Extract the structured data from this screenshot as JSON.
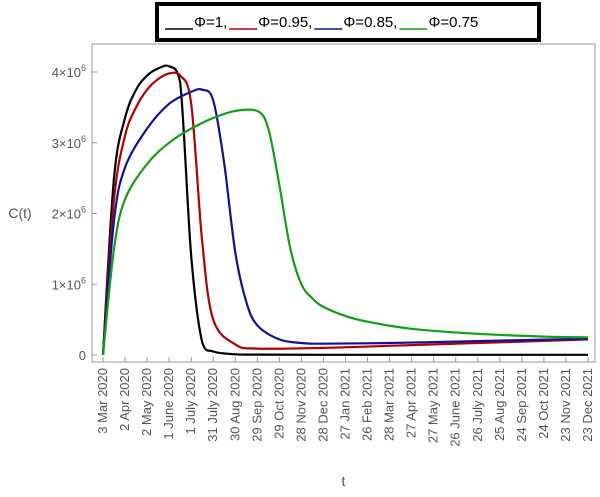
{
  "chart_data": {
    "type": "line",
    "xlabel": "t",
    "ylabel": "C(t)",
    "ylim": [
      0,
      4200000
    ],
    "grid": false,
    "legend_position": "top",
    "x_ticks": [
      "3 Mar 2020",
      "2 Apr 2020",
      "2 May 2020",
      "1 June 2020",
      "1 July 2020",
      "31 July 2020",
      "30 Aug 2020",
      "29 Sep 2020",
      "29 Oct 2020",
      "28 Nov 2020",
      "28 Dec 2020",
      "27 Jan 2021",
      "26 Feb 2021",
      "28 Mar 2021",
      "27 Apr 2021",
      "27 May 2021",
      "26 June 2021",
      "26 July 2021",
      "25 Aug 2021",
      "24 Sep 2021",
      "24 Oct 2021",
      "23 Nov 2021",
      "23 Dec 2021"
    ],
    "y_ticks": [
      {
        "value": 0,
        "base": "0",
        "exp": ""
      },
      {
        "value": 1000000,
        "base": "1×10",
        "exp": "6"
      },
      {
        "value": 2000000,
        "base": "2×10",
        "exp": "6"
      },
      {
        "value": 3000000,
        "base": "3×10",
        "exp": "6"
      },
      {
        "value": 4000000,
        "base": "4×10",
        "exp": "6"
      }
    ],
    "series": [
      {
        "name": "Φ=1",
        "color": "#000000",
        "x": [
          "3 Mar 2020",
          "18 Mar 2020",
          "2 Apr 2020",
          "17 Apr 2020",
          "2 May 2020",
          "17 May 2020",
          "1 June 2020",
          "16 June 2020",
          "1 July 2020",
          "16 July 2020",
          "31 July 2020",
          "30 Aug 2020",
          "29 Sep 2020",
          "28 Dec 2020",
          "28 Mar 2021",
          "26 June 2021",
          "23 Dec 2021"
        ],
        "values": [
          0,
          2500000,
          3350000,
          3750000,
          3950000,
          4050000,
          4080000,
          3850000,
          1400000,
          180000,
          50000,
          10000,
          5000,
          3000,
          3000,
          3000,
          3000
        ]
      },
      {
        "name": "Φ=0.95",
        "color": "#b00000",
        "x": [
          "3 Mar 2020",
          "18 Mar 2020",
          "2 Apr 2020",
          "17 Apr 2020",
          "2 May 2020",
          "17 May 2020",
          "1 June 2020",
          "16 June 2020",
          "1 July 2020",
          "16 July 2020",
          "31 July 2020",
          "30 Aug 2020",
          "29 Sep 2020",
          "28 Dec 2020",
          "28 Mar 2021",
          "26 June 2021",
          "24 Sep 2021",
          "23 Dec 2021"
        ],
        "values": [
          0,
          2200000,
          3100000,
          3500000,
          3750000,
          3900000,
          3980000,
          3950000,
          3550000,
          1600000,
          500000,
          150000,
          90000,
          100000,
          130000,
          160000,
          190000,
          220000
        ]
      },
      {
        "name": "Φ=0.85",
        "color": "#1010a0",
        "x": [
          "3 Mar 2020",
          "18 Mar 2020",
          "2 Apr 2020",
          "2 May 2020",
          "1 June 2020",
          "1 July 2020",
          "16 July 2020",
          "31 July 2020",
          "15 Aug 2020",
          "30 Aug 2020",
          "14 Sep 2020",
          "29 Sep 2020",
          "29 Oct 2020",
          "28 Nov 2020",
          "28 Dec 2020",
          "28 Mar 2021",
          "26 June 2021",
          "24 Sep 2021",
          "23 Dec 2021"
        ],
        "values": [
          0,
          1900000,
          2650000,
          3200000,
          3550000,
          3720000,
          3750000,
          3600000,
          2700000,
          1450000,
          750000,
          420000,
          220000,
          170000,
          160000,
          170000,
          190000,
          210000,
          230000
        ]
      },
      {
        "name": "Φ=0.75",
        "color": "#10a010",
        "x": [
          "3 Mar 2020",
          "18 Mar 2020",
          "2 Apr 2020",
          "2 May 2020",
          "1 June 2020",
          "1 July 2020",
          "31 July 2020",
          "30 Aug 2020",
          "29 Sep 2020",
          "14 Oct 2020",
          "29 Oct 2020",
          "13 Nov 2020",
          "28 Nov 2020",
          "13 Dec 2020",
          "28 Dec 2020",
          "27 Jan 2021",
          "26 Feb 2021",
          "27 Apr 2021",
          "26 July 2021",
          "24 Oct 2021",
          "23 Dec 2021"
        ],
        "values": [
          0,
          1500000,
          2200000,
          2700000,
          3000000,
          3200000,
          3350000,
          3450000,
          3450000,
          3200000,
          2400000,
          1500000,
          1000000,
          800000,
          680000,
          550000,
          470000,
          370000,
          300000,
          260000,
          250000
        ]
      }
    ]
  }
}
